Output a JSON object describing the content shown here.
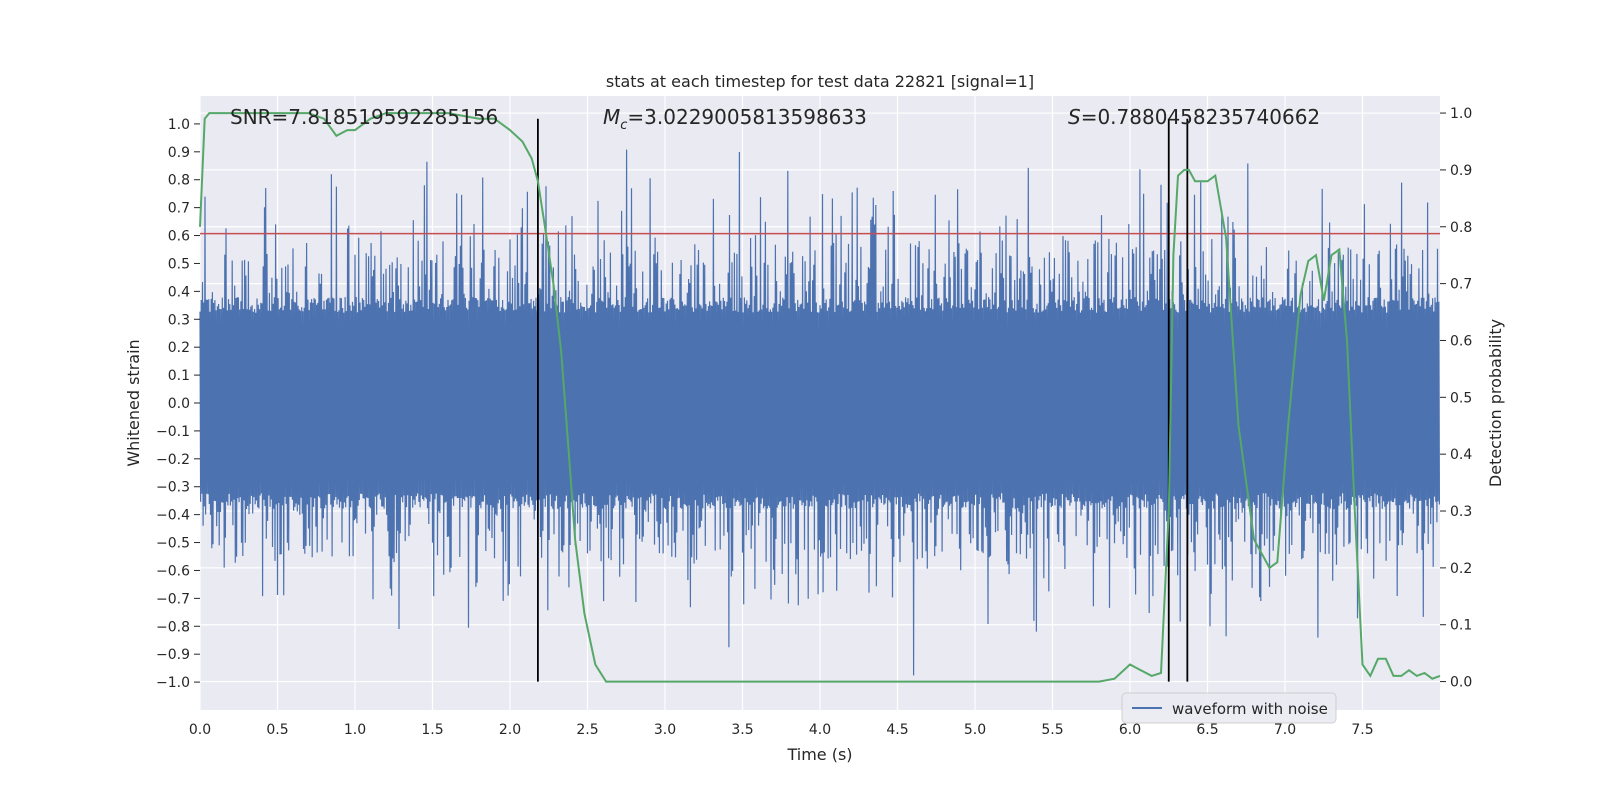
{
  "chart_data": {
    "type": "line",
    "title": "stats at each timestep for test data 22821 [signal=1]",
    "xlabel": "Time (s)",
    "ylabel_left": "Whitened strain",
    "ylabel_right": "Detection probability",
    "xlim": [
      0.0,
      8.0
    ],
    "ylim_left": [
      -1.1,
      1.1
    ],
    "ylim_right": [
      -0.05,
      1.03
    ],
    "x_ticks": [
      "0.0",
      "0.5",
      "1.0",
      "1.5",
      "2.0",
      "2.5",
      "3.0",
      "3.5",
      "4.0",
      "4.5",
      "5.0",
      "5.5",
      "6.0",
      "6.5",
      "7.0",
      "7.5"
    ],
    "x_tick_values": [
      0.0,
      0.5,
      1.0,
      1.5,
      2.0,
      2.5,
      3.0,
      3.5,
      4.0,
      4.5,
      5.0,
      5.5,
      6.0,
      6.5,
      7.0,
      7.5
    ],
    "y_left_ticks": [
      "1.0",
      "0.9",
      "0.8",
      "0.7",
      "0.6",
      "0.5",
      "0.4",
      "0.3",
      "0.2",
      "0.1",
      "0.0",
      "−0.1",
      "−0.2",
      "−0.3",
      "−0.4",
      "−0.5",
      "−0.6",
      "−0.7",
      "−0.8",
      "−0.9",
      "−1.0"
    ],
    "y_left_tick_values": [
      1.0,
      0.9,
      0.8,
      0.7,
      0.6,
      0.5,
      0.4,
      0.3,
      0.2,
      0.1,
      0.0,
      -0.1,
      -0.2,
      -0.3,
      -0.4,
      -0.5,
      -0.6,
      -0.7,
      -0.8,
      -0.9,
      -1.0
    ],
    "y_right_ticks": [
      "1.0",
      "0.9",
      "0.8",
      "0.7",
      "0.6",
      "0.5",
      "0.4",
      "0.3",
      "0.2",
      "0.1",
      "0.0"
    ],
    "y_right_tick_values": [
      1.0,
      0.9,
      0.8,
      0.7,
      0.6,
      0.5,
      0.4,
      0.3,
      0.2,
      0.1,
      0.0
    ],
    "annotations": {
      "snr": "SNR=7.818519592285156",
      "mc_symbol": "M",
      "mc_sub": "c",
      "mc_value": "=3.0229005813598633",
      "s_symbol": "S",
      "s_value": "=0.7880458235740662"
    },
    "threshold": {
      "value": 0.788,
      "axis": "right",
      "color": "#c44e52"
    },
    "vertical_lines": [
      2.18,
      6.25,
      6.37
    ],
    "legend": {
      "label": "waveform with noise",
      "location": "lower-right"
    },
    "series": [
      {
        "name": "waveform with noise",
        "axis": "left",
        "color": "#4c72b0",
        "duration": 8.0,
        "samples": 2000,
        "core_amplitude": 0.38,
        "peak_amplitude": 1.0,
        "seed": 22821
      },
      {
        "name": "detection probability",
        "axis": "right",
        "color": "#55a868",
        "x": [
          0.0,
          0.03,
          0.06,
          0.12,
          0.3,
          0.5,
          0.7,
          0.8,
          0.88,
          0.95,
          1.0,
          1.05,
          1.1,
          1.2,
          1.4,
          1.6,
          1.8,
          1.9,
          2.0,
          2.08,
          2.14,
          2.18,
          2.22,
          2.28,
          2.33,
          2.38,
          2.42,
          2.48,
          2.55,
          2.62,
          2.8,
          3.0,
          3.2,
          3.5,
          3.8,
          4.0,
          4.2,
          4.5,
          4.8,
          5.0,
          5.2,
          5.4,
          5.6,
          5.8,
          5.9,
          6.0,
          6.07,
          6.14,
          6.2,
          6.25,
          6.28,
          6.31,
          6.35,
          6.38,
          6.42,
          6.5,
          6.55,
          6.62,
          6.7,
          6.8,
          6.9,
          6.95,
          7.02,
          7.1,
          7.15,
          7.2,
          7.25,
          7.3,
          7.35,
          7.4,
          7.45,
          7.5,
          7.55,
          7.6,
          7.65,
          7.7,
          7.75,
          7.8,
          7.85,
          7.9,
          7.95,
          8.0
        ],
        "y": [
          0.8,
          0.99,
          1.0,
          1.0,
          1.0,
          1.0,
          1.0,
          0.99,
          0.96,
          0.97,
          0.97,
          0.98,
          0.99,
          1.0,
          1.0,
          1.0,
          0.99,
          0.99,
          0.97,
          0.95,
          0.92,
          0.88,
          0.81,
          0.7,
          0.58,
          0.4,
          0.25,
          0.12,
          0.03,
          0.0,
          0.0,
          0.0,
          0.0,
          0.0,
          0.0,
          0.0,
          0.0,
          0.0,
          0.0,
          0.0,
          0.0,
          0.0,
          0.0,
          0.0,
          0.005,
          0.03,
          0.02,
          0.01,
          0.015,
          0.3,
          0.75,
          0.89,
          0.9,
          0.9,
          0.88,
          0.88,
          0.89,
          0.78,
          0.45,
          0.25,
          0.2,
          0.21,
          0.45,
          0.68,
          0.74,
          0.75,
          0.67,
          0.75,
          0.76,
          0.6,
          0.3,
          0.03,
          0.01,
          0.04,
          0.04,
          0.01,
          0.01,
          0.02,
          0.01,
          0.015,
          0.005,
          0.01
        ]
      }
    ]
  }
}
